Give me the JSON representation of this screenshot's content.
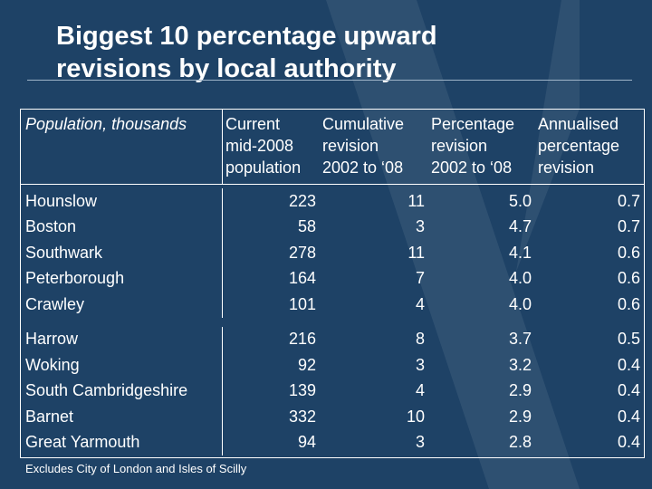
{
  "slide": {
    "title_line1": "Biggest 10 percentage upward",
    "title_line2": "revisions by local authority",
    "footnote": "Excludes City of London and Isles of Scilly"
  },
  "table": {
    "headers": [
      [
        "Population, thousands",
        ""
      ],
      [
        "Current",
        "mid-2008",
        "population"
      ],
      [
        "Cumulative",
        "revision",
        "2002 to ‘08"
      ],
      [
        "Percentage",
        "revision",
        "2002 to ‘08"
      ],
      [
        "Annualised",
        "percentage",
        "revision"
      ]
    ],
    "group1": [
      [
        "Hounslow",
        "223",
        "11",
        "5.0",
        "0.7"
      ],
      [
        "Boston",
        "58",
        "3",
        "4.7",
        "0.7"
      ],
      [
        "Southwark",
        "278",
        "11",
        "4.1",
        "0.6"
      ],
      [
        "Peterborough",
        "164",
        "7",
        "4.0",
        "0.6"
      ],
      [
        "Crawley",
        "101",
        "4",
        "4.0",
        "0.6"
      ]
    ],
    "group2": [
      [
        "Harrow",
        "216",
        "8",
        "3.7",
        "0.5"
      ],
      [
        "Woking",
        "92",
        "3",
        "3.2",
        "0.4"
      ],
      [
        "South Cambridgeshire",
        "139",
        "4",
        "2.9",
        "0.4"
      ],
      [
        "Barnet",
        "332",
        "10",
        "2.9",
        "0.4"
      ],
      [
        "Great Yarmouth",
        "94",
        "3",
        "2.8",
        "0.4"
      ]
    ]
  },
  "colors": {
    "background": "#1e4266",
    "text": "#ffffff"
  }
}
